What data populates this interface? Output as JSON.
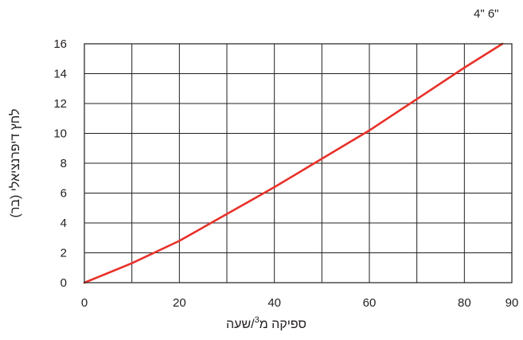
{
  "chart_data": {
    "type": "line",
    "title": "",
    "size_label": "4\"  6\"",
    "xlabel": {
      "before": "ספיקה מ",
      "sup": "3",
      "after": "/שעה"
    },
    "ylabel": "לחץ דיפרנציאלי (בר)",
    "xlim": [
      0,
      90
    ],
    "ylim": [
      0,
      16
    ],
    "x_ticks": [
      "0",
      "20",
      "40",
      "60",
      "80",
      "90"
    ],
    "y_ticks": [
      "0",
      "2",
      "4",
      "6",
      "8",
      "10",
      "12",
      "14",
      "16"
    ],
    "grid": true,
    "series": [
      {
        "color": "#e8312a",
        "x": [
          0,
          10,
          20,
          30,
          40,
          50,
          60,
          70,
          80,
          88
        ],
        "y": [
          0,
          1.3,
          2.8,
          4.6,
          6.4,
          8.3,
          10.2,
          12.3,
          14.4,
          16.0
        ]
      }
    ]
  }
}
